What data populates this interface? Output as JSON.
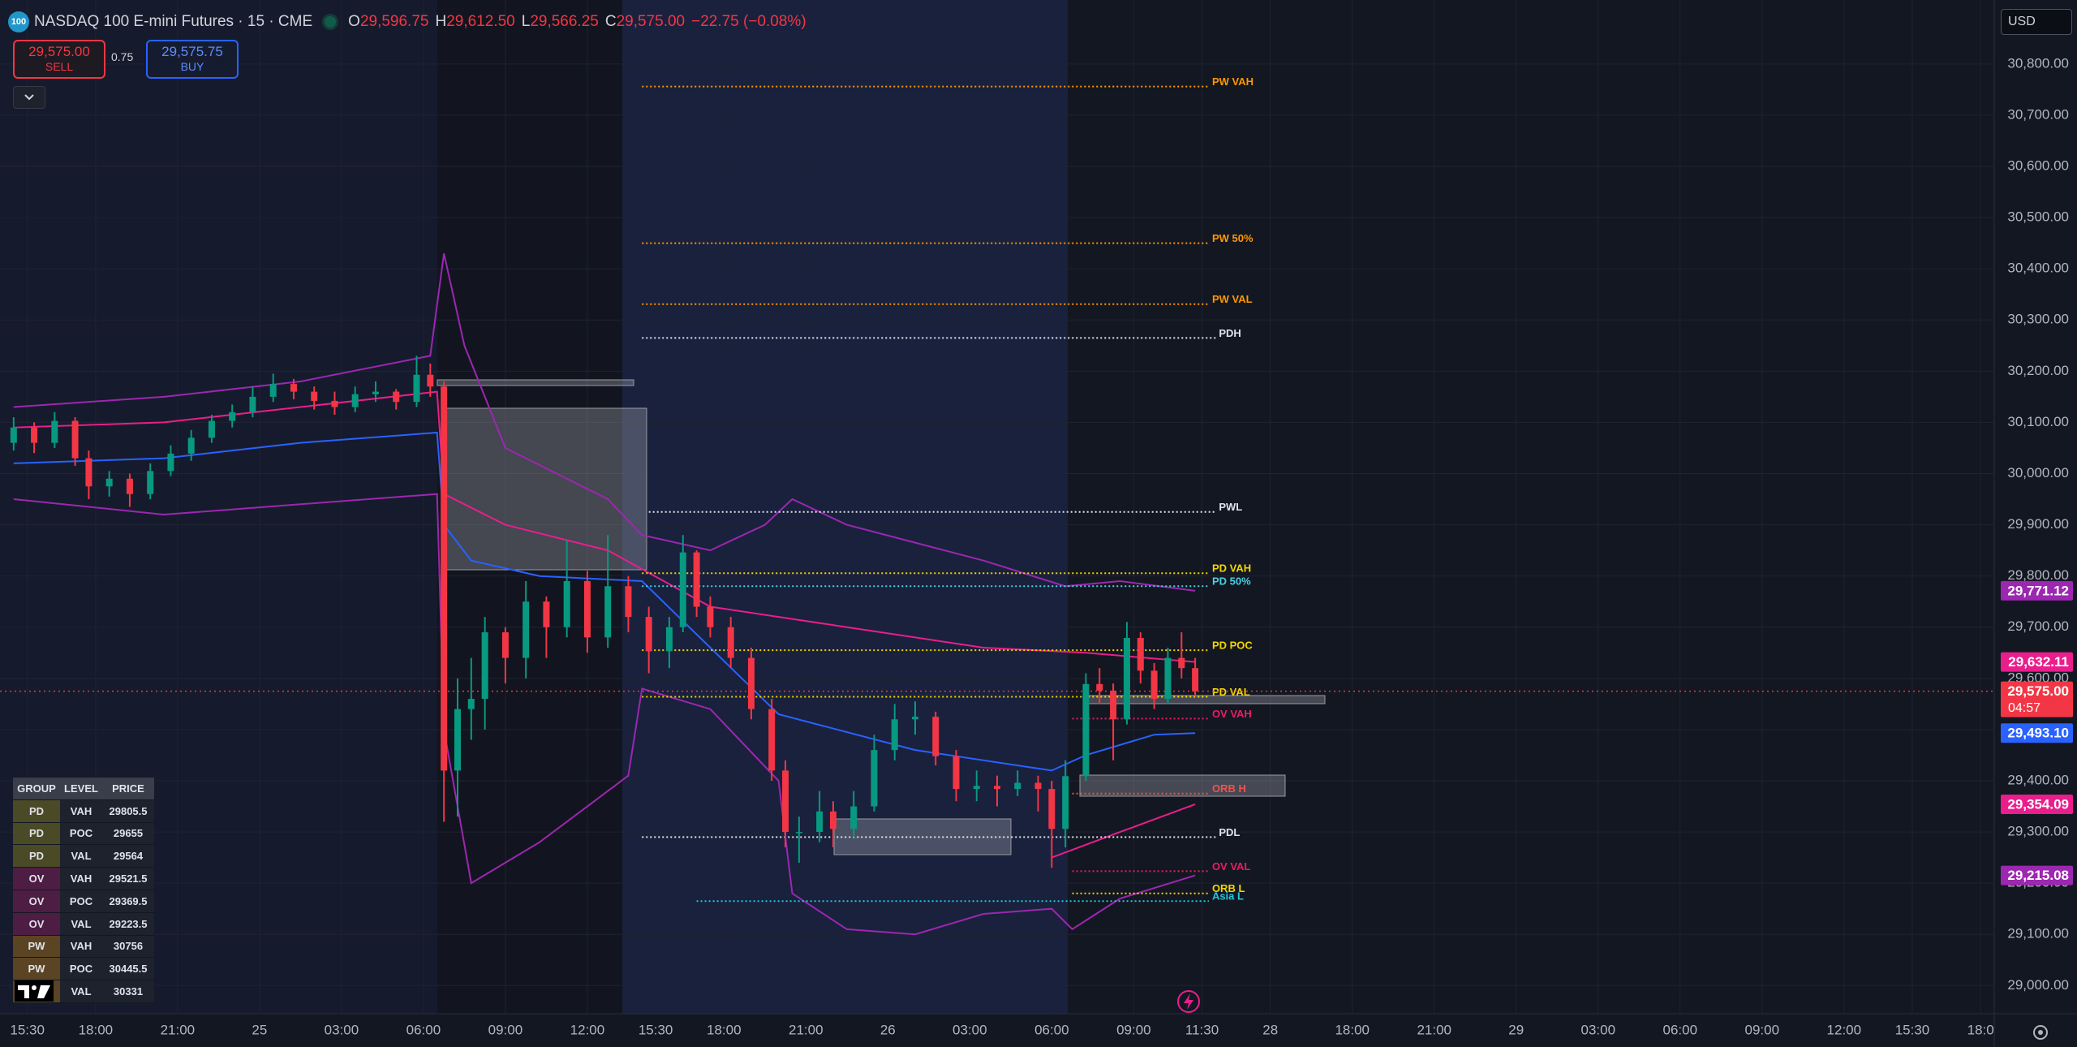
{
  "header": {
    "badge": "100",
    "title": "NASDAQ 100 E-mini Futures · 15 · CME",
    "open_label": "O",
    "open": "29,596.75",
    "high_label": "H",
    "high": "29,612.50",
    "low_label": "L",
    "low": "29,566.25",
    "close_label": "C",
    "close": "29,575.00",
    "change": "−22.75 (−0.08%)"
  },
  "order_panel": {
    "sell_price": "29,575.00",
    "sell_label": "SELL",
    "spread": "0.75",
    "buy_price": "29,575.75",
    "buy_label": "BUY"
  },
  "currency": "USD",
  "levels_table": {
    "columns": [
      "GROUP",
      "LEVEL",
      "PRICE"
    ],
    "rows": [
      [
        "PD",
        "VAH",
        "29805.5"
      ],
      [
        "PD",
        "POC",
        "29655"
      ],
      [
        "PD",
        "VAL",
        "29564"
      ],
      [
        "OV",
        "VAH",
        "29521.5"
      ],
      [
        "OV",
        "POC",
        "29369.5"
      ],
      [
        "OV",
        "VAL",
        "29223.5"
      ],
      [
        "PW",
        "VAH",
        "30756"
      ],
      [
        "PW",
        "POC",
        "30445.5"
      ],
      [
        "PW",
        "VAL",
        "30331"
      ]
    ]
  },
  "chart_data": {
    "type": "candlestick",
    "grid": true,
    "xlim": [
      -4,
      288
    ],
    "ylim": [
      28945,
      30925
    ],
    "xticks": [
      {
        "value": 0,
        "label": "15:30"
      },
      {
        "value": 10,
        "label": "18:00"
      },
      {
        "value": 22,
        "label": "21:00"
      },
      {
        "value": 34,
        "label": "25"
      },
      {
        "value": 46,
        "label": "03:00"
      },
      {
        "value": 58,
        "label": "06:00"
      },
      {
        "value": 70,
        "label": "09:00"
      },
      {
        "value": 82,
        "label": "12:00"
      },
      {
        "value": 92,
        "label": "15:30"
      },
      {
        "value": 102,
        "label": "18:00"
      },
      {
        "value": 114,
        "label": "21:00"
      },
      {
        "value": 126,
        "label": "26"
      },
      {
        "value": 138,
        "label": "03:00"
      },
      {
        "value": 150,
        "label": "06:00"
      },
      {
        "value": 162,
        "label": "09:00"
      },
      {
        "value": 172,
        "label": "11:30"
      },
      {
        "value": 182,
        "label": "28"
      },
      {
        "value": 194,
        "label": "18:00"
      },
      {
        "value": 206,
        "label": "21:00"
      },
      {
        "value": 218,
        "label": "29"
      },
      {
        "value": 230,
        "label": "03:00"
      },
      {
        "value": 242,
        "label": "06:00"
      },
      {
        "value": 254,
        "label": "09:00"
      },
      {
        "value": 266,
        "label": "12:00"
      },
      {
        "value": 276,
        "label": "15:30"
      },
      {
        "value": 286,
        "label": "18:0"
      }
    ],
    "yticks": [
      {
        "value": 29000,
        "label": "29,000.00"
      },
      {
        "value": 29100,
        "label": "29,100.00"
      },
      {
        "value": 29200,
        "label": "29,200.00"
      },
      {
        "value": 29300,
        "label": "29,300.00"
      },
      {
        "value": 29400,
        "label": "29,400.00"
      },
      {
        "value": 29500,
        "label": "29,500.00"
      },
      {
        "value": 29600,
        "label": "29,600.00"
      },
      {
        "value": 29700,
        "label": "29,700.00"
      },
      {
        "value": 29800,
        "label": "29,800.00"
      },
      {
        "value": 29900,
        "label": "29,900.00"
      },
      {
        "value": 30000,
        "label": "30,000.00"
      },
      {
        "value": 30100,
        "label": "30,100.00"
      },
      {
        "value": 30200,
        "label": "30,200.00"
      },
      {
        "value": 30300,
        "label": "30,300.00"
      },
      {
        "value": 30400,
        "label": "30,400.00"
      },
      {
        "value": 30500,
        "label": "30,500.00"
      },
      {
        "value": 30600,
        "label": "30,600.00"
      },
      {
        "value": 30700,
        "label": "30,700.00"
      },
      {
        "value": 30800,
        "label": "30,800.00"
      }
    ],
    "up_color": "#089981",
    "down_color": "#f23645",
    "candles": {
      "x": [
        -2,
        1,
        4,
        7,
        9,
        12,
        15,
        18,
        21,
        24,
        27,
        30,
        33,
        36,
        39,
        42,
        45,
        48,
        51,
        54,
        57,
        59,
        61,
        63,
        65,
        67,
        70,
        73,
        76,
        79,
        82,
        85,
        88,
        91,
        94,
        96,
        98,
        100,
        103,
        106,
        109,
        111,
        113,
        116,
        118,
        121,
        124,
        127,
        130,
        133,
        136,
        139,
        142,
        145,
        148,
        150,
        152,
        155,
        157,
        159,
        161,
        163,
        165,
        167,
        169,
        171
      ],
      "open": [
        30060,
        30090,
        30060,
        30103,
        30030,
        29975,
        29990,
        29960,
        30005,
        30039,
        30070,
        30103,
        30120,
        30150,
        30175,
        30160,
        30142,
        30130,
        30155,
        30160,
        30140,
        30193,
        30170,
        29420,
        29540,
        29560,
        29690,
        29640,
        29750,
        29700,
        29790,
        29680,
        29780,
        29720,
        29653,
        29700,
        29846,
        29740,
        29700,
        29640,
        29540,
        29420,
        29300,
        29300,
        29340,
        29306,
        29350,
        29460,
        29520,
        29525,
        29448,
        29384,
        29390,
        29384,
        29396,
        29384,
        29306,
        29409,
        29589,
        29576,
        29520,
        29679,
        29615,
        29560,
        29640,
        29620
      ],
      "high": [
        30110,
        30100,
        30120,
        30110,
        30045,
        30005,
        30000,
        30020,
        30055,
        30085,
        30115,
        30135,
        30170,
        30195,
        30185,
        30170,
        30160,
        30170,
        30180,
        30165,
        30230,
        30215,
        30180,
        29600,
        29640,
        29720,
        29700,
        29790,
        29760,
        29870,
        29810,
        29880,
        29800,
        29740,
        29720,
        29880,
        29850,
        29760,
        29720,
        29660,
        29560,
        29440,
        29330,
        29380,
        29360,
        29380,
        29490,
        29550,
        29555,
        29535,
        29460,
        29420,
        29410,
        29420,
        29410,
        29400,
        29440,
        29610,
        29620,
        29590,
        29710,
        29690,
        29630,
        29660,
        29690,
        29640
      ],
      "low": [
        30045,
        30040,
        30050,
        30015,
        29950,
        29955,
        29935,
        29950,
        29995,
        30025,
        30060,
        30090,
        30110,
        30140,
        30145,
        30125,
        30115,
        30120,
        30140,
        30125,
        30130,
        30150,
        29320,
        29330,
        29480,
        29500,
        29590,
        29600,
        29640,
        29680,
        29650,
        29660,
        29690,
        29610,
        29620,
        29690,
        29720,
        29680,
        29620,
        29520,
        29400,
        29270,
        29240,
        29280,
        29270,
        29290,
        29340,
        29440,
        29490,
        29430,
        29360,
        29360,
        29350,
        29370,
        29340,
        29230,
        29270,
        29400,
        29550,
        29440,
        29510,
        29590,
        29540,
        29550,
        29600,
        29565
      ],
      "close": [
        30090,
        30060,
        30103,
        30030,
        29975,
        29990,
        29960,
        30005,
        30039,
        30070,
        30103,
        30120,
        30150,
        30175,
        30160,
        30142,
        30130,
        30155,
        30160,
        30140,
        30193,
        30170,
        29420,
        29540,
        29560,
        29690,
        29640,
        29750,
        29700,
        29790,
        29680,
        29780,
        29720,
        29653,
        29700,
        29846,
        29740,
        29700,
        29640,
        29540,
        29420,
        29300,
        29300,
        29340,
        29306,
        29350,
        29460,
        29520,
        29525,
        29448,
        29384,
        29390,
        29384,
        29396,
        29384,
        29306,
        29409,
        29589,
        29576,
        29520,
        29679,
        29615,
        29560,
        29640,
        29620,
        29575
      ]
    },
    "series": [
      {
        "color": "#2962ff",
        "x": [
          -2,
          20,
          40,
          60,
          61,
          65,
          75,
          90,
          100,
          110,
          130,
          150,
          155,
          165,
          171
        ],
        "values": [
          30020,
          30030,
          30060,
          30080,
          29900,
          29830,
          29800,
          29790,
          29660,
          29530,
          29460,
          29420,
          29450,
          29490,
          29493.1
        ]
      },
      {
        "color": "#e91e8c",
        "x": [
          -2,
          20,
          40,
          60,
          61,
          70,
          85,
          100,
          120,
          140,
          155,
          171
        ],
        "values": [
          30090,
          30100,
          30130,
          30160,
          29960,
          29900,
          29850,
          29740,
          29700,
          29660,
          29650,
          29632.11
        ]
      },
      {
        "color": "#9c27b0",
        "x": [
          -2,
          20,
          40,
          59,
          61,
          64,
          70,
          85,
          90,
          100,
          108,
          112,
          120,
          140,
          152,
          160,
          171
        ],
        "values": [
          30130,
          30150,
          30180,
          30230,
          30430,
          30250,
          30050,
          29950,
          29880,
          29850,
          29900,
          29950,
          29900,
          29830,
          29780,
          29790,
          29771.12
        ]
      },
      {
        "color": "#9c27b0",
        "x": [
          -2,
          20,
          40,
          60,
          61,
          65,
          75,
          88,
          90,
          100,
          110,
          112,
          120,
          130,
          140,
          150,
          153,
          160,
          171
        ],
        "values": [
          29950,
          29920,
          29940,
          29960,
          29500,
          29200,
          29280,
          29410,
          29580,
          29540,
          29400,
          29180,
          29110,
          29100,
          29140,
          29150,
          29110,
          29170,
          29215.08
        ]
      },
      {
        "color": "#e91e8c",
        "x": [
          150,
          160,
          171
        ],
        "values": [
          29250,
          29300,
          29354.09
        ]
      }
    ],
    "levels": [
      {
        "name": "PW VAH",
        "value": 30756,
        "x0": 90,
        "x1": 173,
        "color": "#ff9800"
      },
      {
        "name": "PW 50%",
        "value": 30450,
        "x0": 90,
        "x1": 173,
        "color": "#ff9800"
      },
      {
        "name": "PW VAL",
        "value": 30331,
        "x0": 90,
        "x1": 173,
        "color": "#ff9800"
      },
      {
        "name": "PDH",
        "value": 30265,
        "x0": 90,
        "x1": 174,
        "color": "#e0e3eb"
      },
      {
        "name": "PWL",
        "value": 29925,
        "x0": 91,
        "x1": 174,
        "color": "#e0e3eb"
      },
      {
        "name": "PD VAH",
        "value": 29805.5,
        "x0": 90,
        "x1": 173,
        "color": "#f2d600"
      },
      {
        "name": "PD 50%",
        "value": 29780,
        "x0": 90,
        "x1": 173,
        "color": "#4dd0e1"
      },
      {
        "name": "PD POC",
        "value": 29655,
        "x0": 90,
        "x1": 173,
        "color": "#f2d600"
      },
      {
        "name": "PD VAL",
        "value": 29564,
        "x0": 90,
        "x1": 173,
        "color": "#f2d600"
      },
      {
        "name": "OV VAH",
        "value": 29521.5,
        "x0": 153,
        "x1": 173,
        "color": "#e91e63"
      },
      {
        "name": "ORB H",
        "value": 29375,
        "x0": 153,
        "x1": 173,
        "color": "#ef5350"
      },
      {
        "name": "PDL",
        "value": 29290,
        "x0": 90,
        "x1": 174,
        "color": "#e0e3eb"
      },
      {
        "name": "OV VAL",
        "value": 29223.5,
        "x0": 153,
        "x1": 173,
        "color": "#e91e63"
      },
      {
        "name": "ORB L",
        "value": 29180,
        "x0": 153,
        "x1": 173,
        "color": "#f2d600"
      },
      {
        "name": "Asia L",
        "value": 29165,
        "x0": 98,
        "x1": 173,
        "color": "#26c6da"
      }
    ],
    "price_badges": [
      {
        "value": 29771.12,
        "label": "29,771.12",
        "color": "#9c27b0"
      },
      {
        "value": 29632.11,
        "label": "29,632.11",
        "color": "#e91e8c"
      },
      {
        "value": 29493.1,
        "label": "29,493.10",
        "color": "#2962ff"
      },
      {
        "value": 29354.09,
        "label": "29,354.09",
        "color": "#e91e8c"
      },
      {
        "value": 29215.08,
        "label": "29,215.08",
        "color": "#9c27b0"
      }
    ],
    "last_price": {
      "value": 29575,
      "label": "29,575.00",
      "countdown": "04:57",
      "color": "#f23645"
    }
  }
}
